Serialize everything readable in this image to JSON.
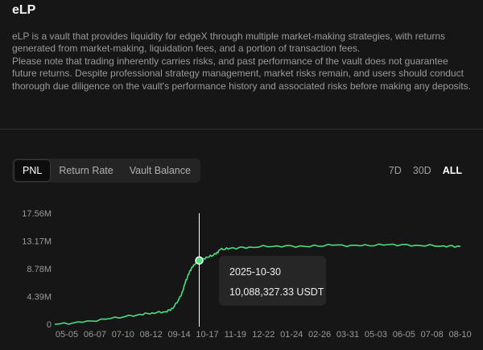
{
  "vault": {
    "title": "eLP",
    "description": [
      "eLP is a vault that provides liquidity for edgeX through multiple market-making strategies, with returns generated from market-making, liquidation fees, and a portion of transaction fees.",
      "Please note that trading inherently carries risks, and past performance of the vault does not guarantee future returns. Despite professional strategy management, market risks remain, and users should conduct thorough due diligence on the vault's performance history and associated risks before making any deposits."
    ]
  },
  "tabs": [
    {
      "label": "PNL",
      "active": true
    },
    {
      "label": "Return Rate",
      "active": false
    },
    {
      "label": "Vault Balance",
      "active": false
    }
  ],
  "ranges": [
    {
      "label": "7D",
      "active": false
    },
    {
      "label": "30D",
      "active": false
    },
    {
      "label": "ALL",
      "active": true
    }
  ],
  "tooltip": {
    "date": "2025-10-30",
    "value": "10,088,327.33 USDT"
  },
  "colors": {
    "line": "#4ade80",
    "background": "#161616",
    "axis_text": "#9a9a9a",
    "crosshair": "#ffffff"
  },
  "chart_data": {
    "type": "line",
    "y_ticks": [
      "17.56M",
      "13.17M",
      "8.78M",
      "4.39M",
      "0"
    ],
    "y_tick_values": [
      17.56,
      13.17,
      8.78,
      4.39,
      0
    ],
    "ylim": [
      0,
      17.56
    ],
    "x_ticks": [
      "05-05",
      "06-07",
      "07-10",
      "08-12",
      "09-14",
      "10-17",
      "11-19",
      "12-22",
      "01-24",
      "02-26",
      "03-31",
      "05-03",
      "06-05",
      "07-08",
      "08-10"
    ],
    "x_index": [
      0,
      1,
      2,
      3,
      3.5,
      4,
      4.25,
      4.55,
      4.7,
      4.85,
      5,
      5.2,
      5.5,
      5.8,
      5.95,
      6.3,
      7,
      8,
      9,
      10,
      11,
      12,
      13,
      14,
      14.6
    ],
    "y": [
      0,
      0.3,
      0.9,
      1.5,
      1.8,
      2.0,
      2.5,
      4.5,
      6.6,
      8.3,
      9.4,
      10.09,
      10.6,
      11.1,
      11.8,
      12.0,
      12.2,
      12.4,
      12.3,
      12.5,
      12.4,
      12.6,
      12.5,
      12.4,
      12.3
    ],
    "ylabel": "",
    "xlabel": "",
    "highlight": {
      "x_index": 5.2,
      "y": 10.09
    }
  }
}
